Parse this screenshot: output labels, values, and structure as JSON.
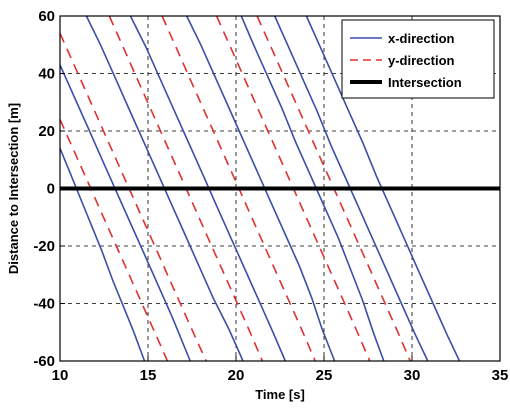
{
  "chart_data": {
    "type": "line",
    "title": "",
    "xlabel": "Time [s]",
    "ylabel": "Distance to Intersection [m]",
    "xlim": [
      10,
      35
    ],
    "ylim": [
      -60,
      60
    ],
    "x_ticks": [
      10,
      15,
      20,
      25,
      30,
      35
    ],
    "y_ticks": [
      -60,
      -40,
      -20,
      0,
      20,
      40,
      60
    ],
    "x_tick_labels": [
      "10",
      "15",
      "20",
      "25",
      "30",
      "35"
    ],
    "y_tick_labels": [
      "-60",
      "-40",
      "-20",
      "0",
      "20",
      "40",
      "60"
    ],
    "grid": true,
    "grid_style": "dashed",
    "legend": {
      "placement": "top-right",
      "entries": [
        {
          "label": "x-direction",
          "color": "#3a4fa8",
          "style": "solid"
        },
        {
          "label": "y-direction",
          "color": "#e03030",
          "style": "dashed"
        },
        {
          "label": "Intersection",
          "color": "#000000",
          "style": "solid-thick"
        }
      ]
    },
    "series": [
      {
        "name": "x-direction",
        "color": "#3a4fa8",
        "style": "solid",
        "lines": [
          [
            [
              10.0,
              14
            ],
            [
              10.6,
              5
            ],
            [
              11.2,
              -4
            ],
            [
              11.8,
              -13
            ],
            [
              12.4,
              -22
            ],
            [
              13.0,
              -32
            ],
            [
              13.6,
              -41
            ],
            [
              14.2,
              -50
            ],
            [
              14.8,
              -60
            ]
          ],
          [
            [
              10.0,
              43
            ],
            [
              10.8,
              32
            ],
            [
              11.6,
              21
            ],
            [
              12.4,
              10
            ],
            [
              13.2,
              -1
            ],
            [
              14.0,
              -12
            ],
            [
              14.8,
              -23
            ],
            [
              15.6,
              -34
            ],
            [
              16.4,
              -45
            ],
            [
              17.4,
              -60
            ]
          ],
          [
            [
              11.5,
              60
            ],
            [
              12.3,
              50
            ],
            [
              13.1,
              39
            ],
            [
              13.9,
              28
            ],
            [
              14.7,
              17
            ],
            [
              15.5,
              6
            ],
            [
              16.3,
              -5
            ],
            [
              17.1,
              -16
            ],
            [
              17.9,
              -27
            ],
            [
              18.7,
              -38
            ],
            [
              19.6,
              -49
            ],
            [
              20.4,
              -60
            ]
          ],
          [
            [
              14.0,
              60
            ],
            [
              14.9,
              49
            ],
            [
              15.7,
              38
            ],
            [
              16.5,
              27
            ],
            [
              17.3,
              16
            ],
            [
              18.1,
              5
            ],
            [
              18.9,
              -6
            ],
            [
              19.7,
              -17
            ],
            [
              20.5,
              -28
            ],
            [
              21.3,
              -39
            ],
            [
              22.1,
              -50
            ],
            [
              22.8,
              -60
            ]
          ],
          [
            [
              17.2,
              60
            ],
            [
              18.0,
              50
            ],
            [
              18.8,
              39
            ],
            [
              19.6,
              28
            ],
            [
              20.4,
              17
            ],
            [
              21.2,
              6
            ],
            [
              22.0,
              -5
            ],
            [
              22.8,
              -16
            ],
            [
              23.6,
              -27
            ],
            [
              24.3,
              -38
            ],
            [
              24.9,
              -49
            ],
            [
              25.6,
              -60
            ]
          ],
          [
            [
              20.3,
              60
            ],
            [
              21.0,
              50
            ],
            [
              21.8,
              39
            ],
            [
              22.6,
              28
            ],
            [
              23.4,
              16
            ],
            [
              24.2,
              5
            ],
            [
              25.0,
              -6
            ],
            [
              25.8,
              -17
            ],
            [
              26.5,
              -28
            ],
            [
              27.2,
              -39
            ],
            [
              27.8,
              -50
            ],
            [
              28.4,
              -60
            ]
          ],
          [
            [
              22.2,
              60
            ],
            [
              23.0,
              49
            ],
            [
              23.8,
              38
            ],
            [
              24.6,
              27
            ],
            [
              25.4,
              15
            ],
            [
              26.2,
              4
            ],
            [
              27.0,
              -7
            ],
            [
              27.8,
              -18
            ],
            [
              28.6,
              -29
            ],
            [
              29.4,
              -40
            ],
            [
              30.2,
              -51
            ],
            [
              30.9,
              -60
            ]
          ],
          [
            [
              24.0,
              60
            ],
            [
              24.8,
              49
            ],
            [
              25.6,
              38
            ],
            [
              26.4,
              27
            ],
            [
              27.2,
              16
            ],
            [
              28.0,
              4
            ],
            [
              28.8,
              -7
            ],
            [
              29.6,
              -18
            ],
            [
              30.4,
              -29
            ],
            [
              31.2,
              -40
            ],
            [
              32.0,
              -51
            ],
            [
              32.7,
              -60
            ]
          ]
        ]
      },
      {
        "name": "y-direction",
        "color": "#e03030",
        "style": "dashed",
        "lines": [
          [
            [
              10.0,
              24
            ],
            [
              10.8,
              13
            ],
            [
              11.6,
              2
            ],
            [
              12.4,
              -9
            ],
            [
              13.2,
              -20
            ],
            [
              14.0,
              -31
            ],
            [
              14.8,
              -42
            ],
            [
              15.6,
              -53
            ],
            [
              16.1,
              -60
            ]
          ],
          [
            [
              10.0,
              54
            ],
            [
              10.8,
              43
            ],
            [
              11.6,
              32
            ],
            [
              12.4,
              21
            ],
            [
              13.2,
              10
            ],
            [
              14.0,
              -1
            ],
            [
              14.8,
              -12
            ],
            [
              15.6,
              -23
            ],
            [
              16.4,
              -34
            ],
            [
              17.2,
              -45
            ],
            [
              18.3,
              -60
            ]
          ],
          [
            [
              12.8,
              60
            ],
            [
              13.6,
              49
            ],
            [
              14.4,
              38
            ],
            [
              15.2,
              27
            ],
            [
              16.0,
              16
            ],
            [
              16.8,
              5
            ],
            [
              17.6,
              -6
            ],
            [
              18.4,
              -17
            ],
            [
              19.2,
              -28
            ],
            [
              20.0,
              -39
            ],
            [
              20.8,
              -50
            ],
            [
              21.5,
              -60
            ]
          ],
          [
            [
              15.8,
              60
            ],
            [
              16.6,
              49
            ],
            [
              17.4,
              38
            ],
            [
              18.2,
              27
            ],
            [
              19.0,
              16
            ],
            [
              19.8,
              5
            ],
            [
              20.6,
              -6
            ],
            [
              21.4,
              -17
            ],
            [
              22.2,
              -28
            ],
            [
              23.0,
              -39
            ],
            [
              23.8,
              -50
            ],
            [
              24.5,
              -60
            ]
          ],
          [
            [
              18.9,
              60
            ],
            [
              19.7,
              49
            ],
            [
              20.5,
              38
            ],
            [
              21.3,
              27
            ],
            [
              22.1,
              16
            ],
            [
              22.9,
              5
            ],
            [
              23.7,
              -6
            ],
            [
              24.5,
              -17
            ],
            [
              25.3,
              -28
            ],
            [
              26.1,
              -39
            ],
            [
              26.9,
              -50
            ],
            [
              27.6,
              -60
            ]
          ],
          [
            [
              21.2,
              60
            ],
            [
              22.0,
              49
            ],
            [
              22.8,
              38
            ],
            [
              23.6,
              27
            ],
            [
              24.4,
              16
            ],
            [
              25.2,
              5
            ],
            [
              26.0,
              -6
            ],
            [
              26.8,
              -17
            ],
            [
              27.6,
              -28
            ],
            [
              28.4,
              -39
            ],
            [
              29.2,
              -50
            ],
            [
              29.9,
              -60
            ]
          ]
        ]
      },
      {
        "name": "Intersection",
        "color": "#000000",
        "style": "solid-thick",
        "lines": [
          [
            [
              10,
              0
            ],
            [
              35,
              0
            ]
          ]
        ]
      }
    ]
  }
}
